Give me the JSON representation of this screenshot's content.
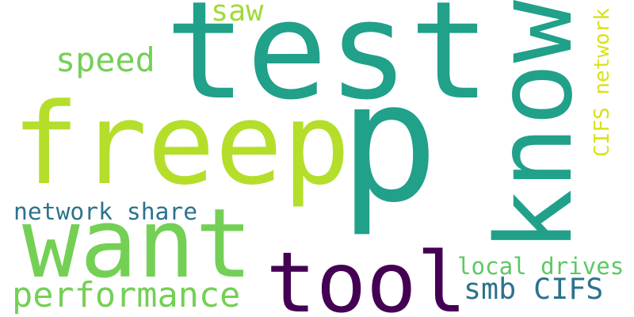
{
  "words": [
    {
      "text": "p",
      "color": "#21a08a",
      "rotated": false
    },
    {
      "text": "test",
      "color": "#21a08a",
      "rotated": false
    },
    {
      "text": "freep",
      "color": "#b5de2b",
      "rotated": false
    },
    {
      "text": "know",
      "color": "#21a08a",
      "rotated": true
    },
    {
      "text": "want",
      "color": "#74d055",
      "rotated": false
    },
    {
      "text": "tool",
      "color": "#440154",
      "rotated": false
    },
    {
      "text": "CIFS network",
      "color": "#d8e219",
      "rotated": true
    },
    {
      "text": "performance",
      "color": "#74d055",
      "rotated": false
    },
    {
      "text": "smb CIFS",
      "color": "#2c728e",
      "rotated": false
    },
    {
      "text": "speed",
      "color": "#74d055",
      "rotated": false
    },
    {
      "text": "saw",
      "color": "#a0da39",
      "rotated": false
    },
    {
      "text": "local drives",
      "color": "#5cc863",
      "rotated": false
    },
    {
      "text": "network share",
      "color": "#2c728e",
      "rotated": false
    }
  ]
}
